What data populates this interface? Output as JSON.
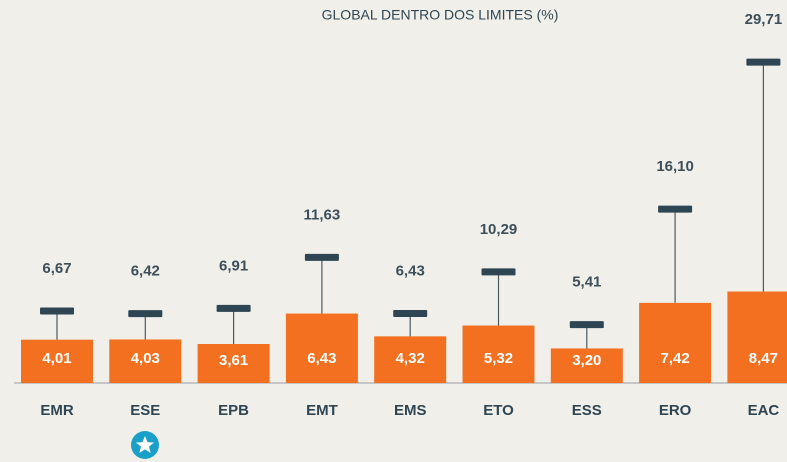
{
  "chart_data": {
    "type": "bar",
    "title": "GLOBAL DENTRO DOS LIMITES (%)",
    "categories": [
      "EMR",
      "ESE",
      "EPB",
      "EMT",
      "EMS",
      "ETO",
      "ESS",
      "ERO",
      "EAC"
    ],
    "values": [
      4.01,
      4.03,
      3.61,
      6.43,
      4.32,
      5.32,
      3.2,
      7.42,
      8.47
    ],
    "value_labels": [
      "4,01",
      "4,03",
      "3,61",
      "6,43",
      "4,32",
      "5,32",
      "3,20",
      "7,42",
      "8,47"
    ],
    "limits": [
      6.67,
      6.42,
      6.91,
      11.63,
      6.43,
      10.29,
      5.41,
      16.1,
      29.71
    ],
    "limit_labels": [
      "6,67",
      "6,42",
      "6,91",
      "11,63",
      "6,43",
      "10,29",
      "5,41",
      "16,10",
      "29,71"
    ],
    "color": "#f37021",
    "limit_color": "#2e4553",
    "ylim": [
      0,
      30
    ]
  }
}
